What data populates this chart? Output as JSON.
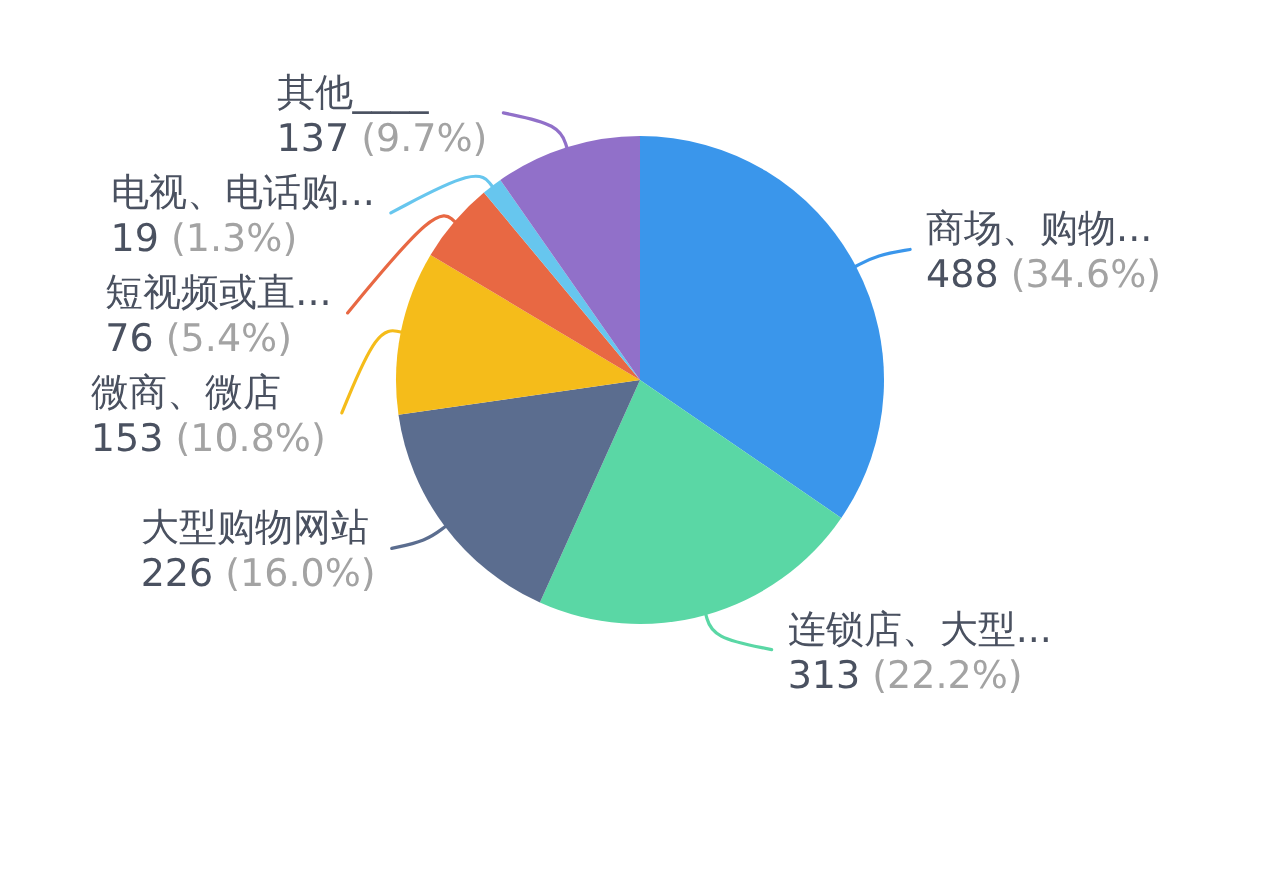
{
  "chart_data": {
    "type": "pie",
    "categories": [
      "商场、购物...",
      "连锁店、大型...",
      "大型购物网站",
      "微商、微店",
      "短视频或直...",
      "电视、电话购...",
      "其他____"
    ],
    "values": [
      488,
      313,
      226,
      153,
      76,
      19,
      137
    ],
    "colors": [
      "#3a96eb",
      "#5ad7a5",
      "#5b6d8f",
      "#f5bc1a",
      "#e86843",
      "#67c6ee",
      "#9170c9"
    ],
    "value_labels": [
      "488 (34.6%)",
      "313 (22.2%)",
      "226 (16.0%)",
      "153 (10.8%)",
      "76 (5.4%)",
      "19 (1.3%)",
      "137 (9.7%)"
    ]
  }
}
